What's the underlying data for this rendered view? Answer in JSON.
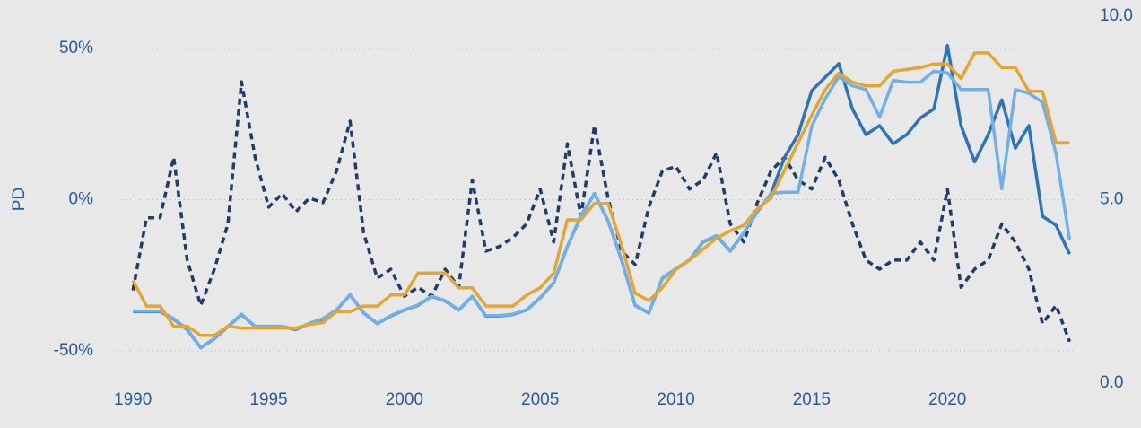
{
  "chart_data": {
    "type": "line",
    "ylabel": "PD",
    "x": [
      1990,
      1990.5,
      1991,
      1991.5,
      1992,
      1992.5,
      1993,
      1993.5,
      1994,
      1994.5,
      1995,
      1995.5,
      1996,
      1996.5,
      1997,
      1997.5,
      1998,
      1998.5,
      1999,
      1999.5,
      2000,
      2000.5,
      2001,
      2001.5,
      2002,
      2002.5,
      2003,
      2003.5,
      2004,
      2004.5,
      2005,
      2005.5,
      2006,
      2006.5,
      2007,
      2007.5,
      2008,
      2008.5,
      2009,
      2009.5,
      2010,
      2010.5,
      2011,
      2011.5,
      2012,
      2012.5,
      2013,
      2013.5,
      2014,
      2014.5,
      2015,
      2015.5,
      2016,
      2016.5,
      2017,
      2017.5,
      2018,
      2018.5,
      2019,
      2019.5,
      2020,
      2020.5,
      2021,
      2021.5,
      2022,
      2022.5,
      2023,
      2023.5,
      2024,
      2024.5
    ],
    "xlim": [
      1989.4,
      2024.75
    ],
    "xticks": [
      1990,
      1995,
      2000,
      2005,
      2010,
      2015,
      2020
    ],
    "ylim": [
      -60.7,
      60.7
    ],
    "yticks": [
      {
        "value": -50,
        "label": "-50%"
      },
      {
        "value": 0,
        "label": "0%"
      },
      {
        "value": 50,
        "label": "50%"
      }
    ],
    "y2lim": [
      0,
      10
    ],
    "y2ticks": [
      {
        "value": 0,
        "label": "0.0"
      },
      {
        "value": 5,
        "label": "5.0"
      },
      {
        "value": 10,
        "label": "10.0"
      }
    ],
    "grid": true,
    "series": [
      {
        "color": "#1f3d6b",
        "dashed": true,
        "values": [
          -30,
          -6,
          -6,
          14,
          -20,
          -35,
          -23,
          -8,
          39,
          14,
          -2.5,
          2,
          -4,
          0.5,
          -1,
          9.5,
          26,
          -11,
          -26,
          -23,
          -32,
          -29,
          -32,
          -23,
          -29,
          6.5,
          -17,
          -15.5,
          -12.5,
          -8,
          3.5,
          -14,
          18.5,
          -5.5,
          24.5,
          0.5,
          -17,
          -21.5,
          -2.5,
          9.5,
          11,
          3.5,
          6.5,
          15.5,
          -8,
          -14,
          -1,
          9.5,
          14,
          6.5,
          3.5,
          14,
          6.5,
          -8,
          -20,
          -23,
          -20,
          -20,
          -14,
          -20,
          3.5,
          -29,
          -23,
          -20,
          -8,
          -14,
          -23,
          -41,
          -35,
          -47
        ]
      },
      {
        "color": "#2b74b9",
        "values": [
          -37,
          -37,
          -37,
          -39.5,
          -43,
          -49,
          -46,
          -42,
          -38,
          -42,
          -42,
          -42,
          -43,
          -41,
          -39.5,
          -36.5,
          -31.5,
          -37.5,
          -41,
          -38.5,
          -36.5,
          -35,
          -32,
          -33.5,
          -36.5,
          -32,
          -38.5,
          -38.5,
          -38,
          -36.5,
          -32.5,
          -27.5,
          -15.5,
          -5.5,
          2,
          -7,
          -20,
          -35,
          -37.5,
          -26,
          -23,
          -20,
          -14,
          -12,
          -17,
          -11,
          -4,
          2,
          14,
          21.5,
          36,
          40.5,
          45,
          30,
          21.5,
          24.5,
          18.5,
          21.5,
          27,
          30,
          51,
          24.5,
          12.5,
          21.5,
          33,
          17,
          24.5,
          -5.5,
          -8.5,
          -18
        ]
      },
      {
        "color": "#6fb0ea",
        "axis": "y2",
        "values": [
          1.96,
          1.96,
          1.96,
          1.76,
          1.47,
          0.97,
          1.22,
          1.55,
          1.88,
          1.55,
          1.55,
          1.55,
          1.47,
          1.63,
          1.76,
          2.0,
          2.41,
          1.92,
          1.63,
          1.84,
          2.0,
          2.13,
          2.37,
          2.25,
          2.0,
          2.37,
          1.84,
          1.84,
          1.88,
          2.0,
          2.33,
          2.74,
          3.73,
          4.56,
          5.17,
          4.43,
          3.36,
          2.13,
          1.92,
          2.87,
          3.12,
          3.36,
          3.86,
          4.02,
          3.61,
          4.1,
          4.68,
          5.17,
          5.2,
          5.2,
          7.0,
          7.75,
          8.35,
          8.1,
          8.0,
          7.25,
          8.25,
          8.2,
          8.2,
          8.5,
          8.45,
          8.0,
          8.0,
          8.0,
          5.3,
          8.0,
          7.9,
          7.65,
          6.25,
          3.9
        ]
      },
      {
        "color": "#e5a631",
        "axis": "y2",
        "values": [
          2.8,
          2.1,
          2.1,
          1.55,
          1.55,
          1.3,
          1.3,
          1.55,
          1.5,
          1.5,
          1.5,
          1.5,
          1.5,
          1.6,
          1.65,
          1.95,
          1.95,
          2.1,
          2.1,
          2.4,
          2.4,
          3.0,
          3.0,
          3.0,
          2.6,
          2.6,
          2.1,
          2.1,
          2.1,
          2.4,
          2.6,
          3.0,
          4.45,
          4.45,
          4.9,
          4.9,
          3.75,
          2.45,
          2.25,
          2.6,
          3.1,
          3.35,
          3.65,
          3.95,
          4.15,
          4.3,
          4.75,
          5.05,
          5.8,
          6.55,
          7.3,
          8.0,
          8.45,
          8.2,
          8.1,
          8.1,
          8.5,
          8.55,
          8.6,
          8.7,
          8.7,
          8.3,
          9.0,
          9.0,
          8.6,
          8.6,
          7.95,
          7.95,
          6.55,
          6.55
        ]
      }
    ]
  }
}
